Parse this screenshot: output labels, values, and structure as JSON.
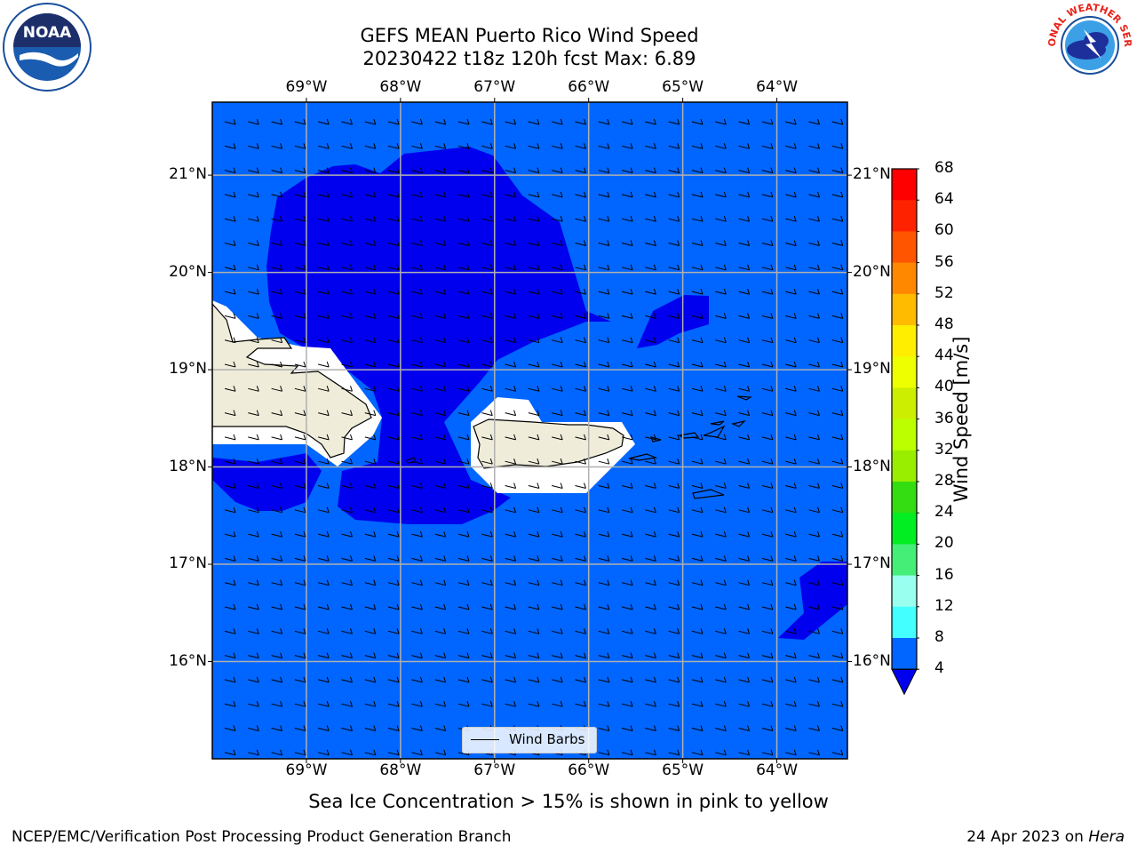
{
  "title": {
    "line1": "GEFS MEAN Puerto Rico Wind Speed",
    "line2": "20230422 t18z 120h fcst   Max: 6.89"
  },
  "logos": {
    "noara": {
      "text": "NOAA",
      "icon": "noaa-logo-icon"
    },
    "nws": {
      "text": "NATIONAL WEATHER SERVICE",
      "icon": "nws-logo-icon"
    }
  },
  "map": {
    "lon_labels": [
      "69°W",
      "68°W",
      "67°W",
      "66°W",
      "65°W",
      "64°W"
    ],
    "lat_labels": [
      "21°N",
      "20°N",
      "19°N",
      "18°N",
      "17°N",
      "16°N"
    ],
    "lon_values": [
      -69,
      -68,
      -67,
      -66,
      -65,
      -64
    ],
    "lat_values": [
      21,
      20,
      19,
      18,
      17,
      16
    ],
    "lon_range": [
      -70,
      -63.25
    ],
    "lat_range": [
      15,
      21.75
    ],
    "colors": {
      "ocean": "#0066ff",
      "dark_wind": "#0000ee",
      "land": "#efedd9",
      "grid": "#b0b0b0"
    },
    "wind_barbs": {
      "direction": "from east",
      "legend_label": "Wind Barbs"
    }
  },
  "colorbar": {
    "label": "Wind Speed [m/s]",
    "ticks": [
      "68",
      "64",
      "60",
      "56",
      "52",
      "48",
      "44",
      "40",
      "36",
      "32",
      "28",
      "24",
      "20",
      "16",
      "12",
      "8",
      "4"
    ],
    "colors": [
      "#ff0000",
      "#ff2200",
      "#ff5500",
      "#ff8800",
      "#ffbb00",
      "#ffee00",
      "#eeff00",
      "#ccee00",
      "#bbff00",
      "#99ee00",
      "#33dd11",
      "#00ee22",
      "#44ee77",
      "#99ffee",
      "#44ffff",
      "#00ffee",
      "#0066ff"
    ],
    "extend_color": "#0000ee"
  },
  "caption": "Sea Ice Concentration > 15% is shown in pink to yellow",
  "footer": {
    "left": "NCEP/EMC/Verification Post Processing Product Generation Branch",
    "date": "24 Apr 2023 on ",
    "machine": "Hera"
  }
}
